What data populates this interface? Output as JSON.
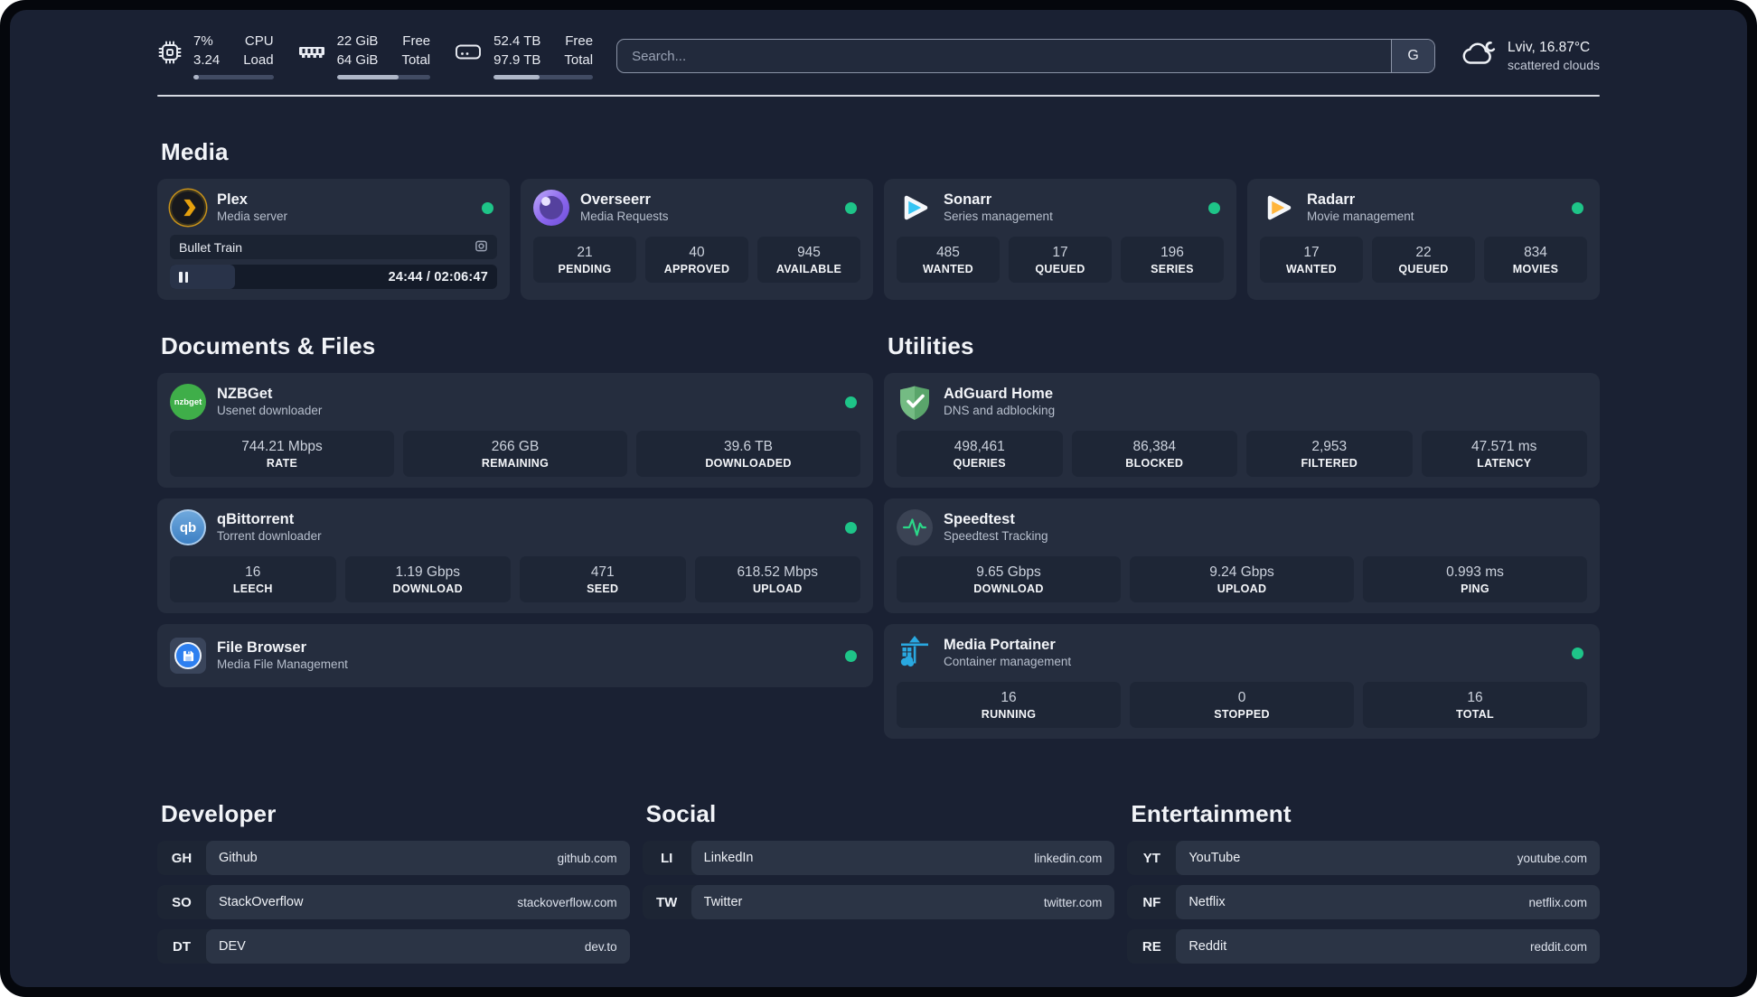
{
  "colors": {
    "status_online": "#1ec488",
    "plex_gold": "#e5a00d",
    "sonarr_blue": "#35c5f4",
    "radarr_yellow": "#ffb53c",
    "portainer_blue": "#29a8e0",
    "adguard_green": "#67b279",
    "speedtest_green": "#2bd889"
  },
  "header": {
    "cpu": {
      "value": "7%",
      "load": "3.24",
      "label_top": "CPU",
      "label_bottom": "Load",
      "progress": 7
    },
    "memory": {
      "free": "22 GiB",
      "total": "64 GiB",
      "label_top": "Free",
      "label_bottom": "Total",
      "progress": 66
    },
    "disk": {
      "free": "52.4 TB",
      "total": "97.9 TB",
      "label_top": "Free",
      "label_bottom": "Total",
      "progress": 46
    },
    "search": {
      "placeholder": "Search...",
      "button_label": "G"
    },
    "weather": {
      "location": "Lviv, 16.87°C",
      "condition": "scattered clouds"
    }
  },
  "media": {
    "title": "Media",
    "plex": {
      "name": "Plex",
      "subtitle": "Media server",
      "now_playing": "Bullet Train",
      "time": "24:44 / 02:06:47",
      "progress": 20
    },
    "overseerr": {
      "name": "Overseerr",
      "subtitle": "Media Requests",
      "stats": [
        {
          "value": "21",
          "label": "PENDING"
        },
        {
          "value": "40",
          "label": "APPROVED"
        },
        {
          "value": "945",
          "label": "AVAILABLE"
        }
      ]
    },
    "sonarr": {
      "name": "Sonarr",
      "subtitle": "Series management",
      "stats": [
        {
          "value": "485",
          "label": "WANTED"
        },
        {
          "value": "17",
          "label": "QUEUED"
        },
        {
          "value": "196",
          "label": "SERIES"
        }
      ]
    },
    "radarr": {
      "name": "Radarr",
      "subtitle": "Movie management",
      "stats": [
        {
          "value": "17",
          "label": "WANTED"
        },
        {
          "value": "22",
          "label": "QUEUED"
        },
        {
          "value": "834",
          "label": "MOVIES"
        }
      ]
    }
  },
  "documents": {
    "title": "Documents & Files",
    "nzbget": {
      "name": "NZBGet",
      "subtitle": "Usenet downloader",
      "icon_text": "nzbget",
      "stats": [
        {
          "value": "744.21 Mbps",
          "label": "RATE"
        },
        {
          "value": "266 GB",
          "label": "REMAINING"
        },
        {
          "value": "39.6 TB",
          "label": "DOWNLOADED"
        }
      ]
    },
    "qbittorrent": {
      "name": "qBittorrent",
      "subtitle": "Torrent downloader",
      "icon_text": "qb",
      "stats": [
        {
          "value": "16",
          "label": "LEECH"
        },
        {
          "value": "1.19 Gbps",
          "label": "DOWNLOAD"
        },
        {
          "value": "471",
          "label": "SEED"
        },
        {
          "value": "618.52 Mbps",
          "label": "UPLOAD"
        }
      ]
    },
    "filebrowser": {
      "name": "File Browser",
      "subtitle": "Media File Management"
    }
  },
  "utilities": {
    "title": "Utilities",
    "adguard": {
      "name": "AdGuard Home",
      "subtitle": "DNS and adblocking",
      "stats": [
        {
          "value": "498,461",
          "label": "QUERIES"
        },
        {
          "value": "86,384",
          "label": "BLOCKED"
        },
        {
          "value": "2,953",
          "label": "FILTERED"
        },
        {
          "value": "47.571 ms",
          "label": "LATENCY"
        }
      ]
    },
    "speedtest": {
      "name": "Speedtest",
      "subtitle": "Speedtest Tracking",
      "stats": [
        {
          "value": "9.65 Gbps",
          "label": "DOWNLOAD"
        },
        {
          "value": "9.24 Gbps",
          "label": "UPLOAD"
        },
        {
          "value": "0.993 ms",
          "label": "PING"
        }
      ]
    },
    "portainer": {
      "name": "Media Portainer",
      "subtitle": "Container management",
      "stats": [
        {
          "value": "16",
          "label": "RUNNING"
        },
        {
          "value": "0",
          "label": "STOPPED"
        },
        {
          "value": "16",
          "label": "TOTAL"
        }
      ]
    }
  },
  "bookmarks": {
    "developer": {
      "title": "Developer",
      "links": [
        {
          "abbr": "GH",
          "name": "Github",
          "url": "github.com"
        },
        {
          "abbr": "SO",
          "name": "StackOverflow",
          "url": "stackoverflow.com"
        },
        {
          "abbr": "DT",
          "name": "DEV",
          "url": "dev.to"
        }
      ]
    },
    "social": {
      "title": "Social",
      "links": [
        {
          "abbr": "LI",
          "name": "LinkedIn",
          "url": "linkedin.com"
        },
        {
          "abbr": "TW",
          "name": "Twitter",
          "url": "twitter.com"
        }
      ]
    },
    "entertainment": {
      "title": "Entertainment",
      "links": [
        {
          "abbr": "YT",
          "name": "YouTube",
          "url": "youtube.com"
        },
        {
          "abbr": "NF",
          "name": "Netflix",
          "url": "netflix.com"
        },
        {
          "abbr": "RE",
          "name": "Reddit",
          "url": "reddit.com"
        }
      ]
    }
  }
}
